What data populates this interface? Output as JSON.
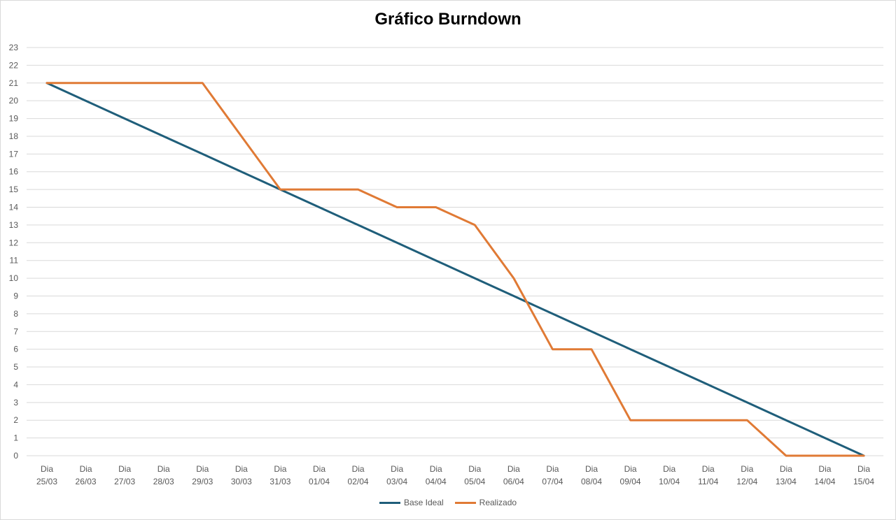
{
  "chart_data": {
    "type": "line",
    "title": "Gráfico Burndown",
    "xlabel": "",
    "ylabel": "",
    "ylim": [
      0,
      23
    ],
    "y_ticks": [
      0,
      1,
      2,
      3,
      4,
      5,
      6,
      7,
      8,
      9,
      10,
      11,
      12,
      13,
      14,
      15,
      16,
      17,
      18,
      19,
      20,
      21,
      22,
      23
    ],
    "categories": [
      [
        "Dia",
        "25/03"
      ],
      [
        "Dia",
        "26/03"
      ],
      [
        "Dia",
        "27/03"
      ],
      [
        "Dia",
        "28/03"
      ],
      [
        "Dia",
        "29/03"
      ],
      [
        "Dia",
        "30/03"
      ],
      [
        "Dia",
        "31/03"
      ],
      [
        "Dia",
        "01/04"
      ],
      [
        "Dia",
        "02/04"
      ],
      [
        "Dia",
        "03/04"
      ],
      [
        "Dia",
        "04/04"
      ],
      [
        "Dia",
        "05/04"
      ],
      [
        "Dia",
        "06/04"
      ],
      [
        "Dia",
        "07/04"
      ],
      [
        "Dia",
        "08/04"
      ],
      [
        "Dia",
        "09/04"
      ],
      [
        "Dia",
        "10/04"
      ],
      [
        "Dia",
        "11/04"
      ],
      [
        "Dia",
        "12/04"
      ],
      [
        "Dia",
        "13/04"
      ],
      [
        "Dia",
        "14/04"
      ],
      [
        "Dia",
        "15/04"
      ]
    ],
    "series": [
      {
        "name": "Base Ideal",
        "color": "#1f5e7a",
        "values": [
          21,
          20,
          19,
          18,
          17,
          16,
          15,
          14,
          13,
          12,
          11,
          10,
          9,
          8,
          7,
          6,
          5,
          4,
          3,
          2,
          1,
          0
        ]
      },
      {
        "name": "Realizado",
        "color": "#e07a35",
        "values": [
          21,
          21,
          21,
          21,
          21,
          18,
          15,
          15,
          15,
          14,
          14,
          13,
          10,
          6,
          6,
          2,
          2,
          2,
          2,
          0,
          0,
          0
        ]
      }
    ],
    "grid": true,
    "legend_position": "bottom"
  }
}
